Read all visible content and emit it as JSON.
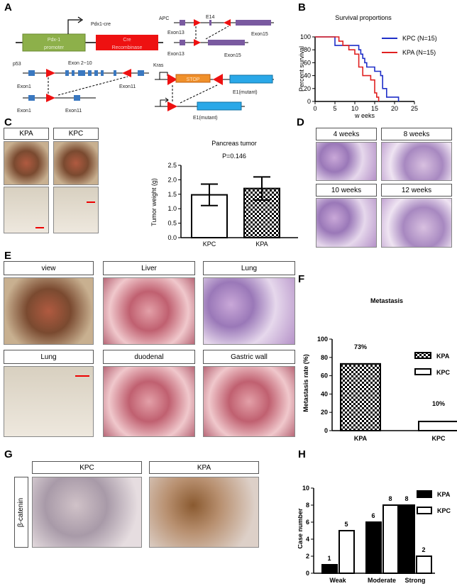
{
  "panels": {
    "A": "A",
    "B": "B",
    "C": "C",
    "D": "D",
    "E": "E",
    "F": "F",
    "G": "G",
    "H": "H"
  },
  "panelA": {
    "pdx1cre": "Pdx1-cre",
    "promoter": [
      "Pdx-1",
      "promoter"
    ],
    "cre": [
      "Cre",
      "Recombinase"
    ],
    "apc": "APC",
    "e14": "E14",
    "exon13a": "Exon13",
    "exon15a": "Exon15",
    "exon13b": "Exon13",
    "exon15b": "Exon15",
    "p53": "p53",
    "exon2_10": "Exon 2~10",
    "exon1a": "Exon1",
    "exon11a": "Exon11",
    "exon1b": "Exon1",
    "exon11b": "Exon11",
    "kras": "Kras",
    "stop": "STOP",
    "e1a": "E1(mutant)",
    "e1b": "E1(mutant)"
  },
  "panelC": {
    "labels": [
      "KPA",
      "KPC"
    ]
  },
  "panelD": {
    "labels": [
      "4 weeks",
      "8 weeks",
      "10 weeks",
      "12 weeks"
    ]
  },
  "panelE": {
    "labels": [
      "view",
      "Liver",
      "Lung",
      "Lung",
      "duodenal",
      "Gastric wall"
    ]
  },
  "panelG": {
    "labels": [
      "KPC",
      "KPA"
    ],
    "stain": "β-catenin"
  },
  "colors": {
    "kpc": "#1f2fc8",
    "kpa": "#e02020",
    "promoter": "#8db04a",
    "cre": "#ee1111",
    "apc_exon": "#7a5aa0",
    "p53_exon": "#3a78c0",
    "stop": "#f0902a",
    "kras_exon": "#2aa8e8",
    "loxp": "#ee1111"
  },
  "chart_data": [
    {
      "id": "B",
      "type": "line",
      "title": "Survival proportions",
      "xlabel": "w eeks",
      "ylabel": "Percent survival",
      "xlim": [
        0,
        25
      ],
      "ylim": [
        0,
        100
      ],
      "xticks": [
        "0",
        "5",
        "10",
        "15",
        "20",
        "25"
      ],
      "yticks": [
        "0",
        "20",
        "40",
        "60",
        "80",
        "100"
      ],
      "legend": "top-right",
      "step": true,
      "series": [
        {
          "name": "KPC (N=15)",
          "color": "#1f2fc8",
          "x": [
            0,
            5,
            11,
            11.5,
            12,
            12.5,
            13,
            15,
            16.5,
            17,
            18,
            21
          ],
          "y": [
            100,
            86.7,
            80,
            73.3,
            66.7,
            60,
            53.3,
            46.7,
            40,
            20,
            6.7,
            0
          ]
        },
        {
          "name": "KPA (N=15)",
          "color": "#e02020",
          "x": [
            0,
            6,
            7,
            8.5,
            10,
            11,
            12,
            14,
            15,
            15.5,
            16
          ],
          "y": [
            100,
            93.3,
            86.7,
            80,
            73.3,
            53.3,
            40,
            33.3,
            13.3,
            6.7,
            0
          ]
        }
      ]
    },
    {
      "id": "C",
      "type": "bar",
      "title": "Pancreas tumor",
      "annotation": "P=0.146",
      "ylabel": "Tumor weight (g)",
      "ylim": [
        0,
        2.5
      ],
      "yticks": [
        "0.0",
        "0.5",
        "1.0",
        "1.5",
        "2.0",
        "2.5"
      ],
      "categories": [
        "KPC",
        "KPA"
      ],
      "values": [
        1.48,
        1.7
      ],
      "errors": [
        0.37,
        0.4
      ],
      "patterns": [
        "white",
        "checker"
      ]
    },
    {
      "id": "F",
      "type": "bar",
      "title": "Metastasis",
      "ylabel": "Metastasis rate (%)",
      "ylim": [
        0,
        100
      ],
      "yticks": [
        "0",
        "20",
        "40",
        "60",
        "80",
        "100"
      ],
      "categories": [
        "KPA",
        "KPC"
      ],
      "values": [
        73,
        10
      ],
      "data_labels": [
        "73%",
        "10%"
      ],
      "patterns": [
        "checker",
        "white"
      ],
      "legend": "right",
      "legend_entries": [
        "KPA",
        "KPC"
      ]
    },
    {
      "id": "H",
      "type": "bar",
      "ylabel": "Case number",
      "ylim": [
        0,
        10
      ],
      "yticks": [
        "0",
        "2",
        "4",
        "6",
        "8",
        "10"
      ],
      "categories": [
        "Weak",
        "Moderate",
        "Strong"
      ],
      "legend": "top-right",
      "series": [
        {
          "name": "KPA",
          "values": [
            1,
            6,
            8
          ],
          "color": "#000000"
        },
        {
          "name": "KPC",
          "values": [
            5,
            8,
            2
          ],
          "color": "#ffffff"
        }
      ]
    }
  ]
}
